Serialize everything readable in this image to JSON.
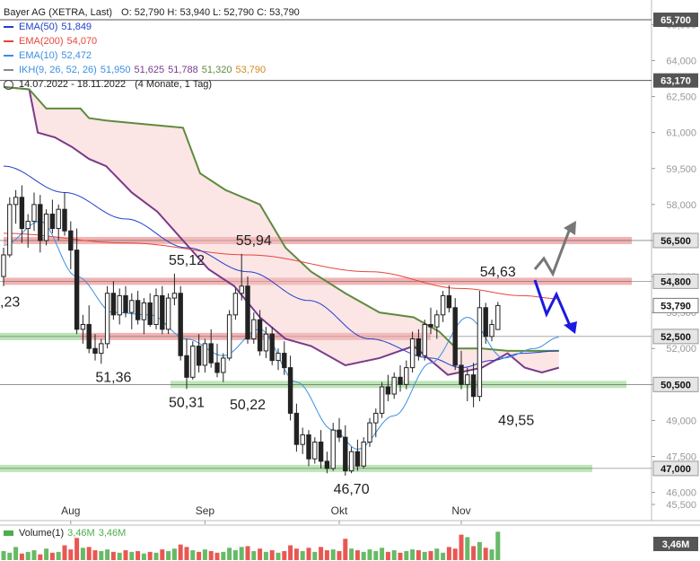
{
  "header": {
    "title": "Bayer AG (XETRA, Last)",
    "ohlc": "O: 52,790  H: 53,940  L: 52,790  C: 53,790",
    "ema50": {
      "label": "EMA(50)",
      "value": "51,849",
      "color": "#1f3fcc"
    },
    "ema200": {
      "label": "EMA(200)",
      "value": "54,070",
      "color": "#e8453c"
    },
    "ema10": {
      "label": "EMA(10)",
      "value": "52,472",
      "color": "#3a8fe0"
    },
    "ikh": {
      "label": "IKH(9, 26, 52, 26)",
      "v1": "51,950",
      "v2": "51,625",
      "v3": "51,788",
      "v4": "51,320",
      "v5": "53,790"
    },
    "period": "14.07.2022 - 18.11.2022",
    "period_note": "(4 Monate, 1 Tag)"
  },
  "volume_legend": {
    "label": "Volume(1)",
    "v1": "3,46M",
    "v2": "3,46M"
  },
  "chart_data": {
    "type": "candlestick",
    "y_axis": {
      "min": 45.2,
      "max": 66.0,
      "ticks": [
        "65,500",
        "64,000",
        "62,500",
        "61,000",
        "59,500",
        "58,000",
        "56,500",
        "55,000",
        "53,500",
        "52,000",
        "50,500",
        "49,000",
        "47,500",
        "46,000",
        "45,500"
      ]
    },
    "x_axis": {
      "labels": [
        "Aug",
        "Sep",
        "Okt",
        "Nov"
      ],
      "label_index": [
        11,
        33,
        55,
        75
      ]
    },
    "price_badges": [
      {
        "value": "65,700",
        "y": 65.7,
        "style": "dark"
      },
      {
        "value": "63,170",
        "y": 63.17,
        "style": "dark"
      },
      {
        "value": "56,500",
        "y": 56.5,
        "style": "zone"
      },
      {
        "value": "54,800",
        "y": 54.8,
        "style": "zone"
      },
      {
        "value": "53,790",
        "y": 53.79,
        "style": "last"
      },
      {
        "value": "52,500",
        "y": 52.5,
        "style": "zone"
      },
      {
        "value": "50,500",
        "y": 50.5,
        "style": "zone"
      },
      {
        "value": "47,000",
        "y": 47.0,
        "style": "zone"
      }
    ],
    "resistance_zones": [
      {
        "y1": 56.35,
        "y2": 56.65,
        "color": "red"
      },
      {
        "y1": 54.65,
        "y2": 54.95,
        "color": "red"
      },
      {
        "y1": 52.35,
        "y2": 52.65,
        "color": "mixed"
      },
      {
        "y1": 50.35,
        "y2": 50.65,
        "color": "green"
      },
      {
        "y1": 46.85,
        "y2": 47.15,
        "color": "green"
      }
    ],
    "annotations": [
      {
        "text": "55,94",
        "i": 41,
        "y": 55.94,
        "pos": "above"
      },
      {
        "text": "55,12",
        "i": 30,
        "y": 55.12,
        "pos": "above"
      },
      {
        "text": "54,63",
        "i": 81,
        "y": 54.63,
        "pos": "above"
      },
      {
        "text": "51,36",
        "i": 18,
        "y": 51.36,
        "pos": "below"
      },
      {
        "text": "50,31",
        "i": 30,
        "y": 50.31,
        "pos": "below"
      },
      {
        "text": "50,22",
        "i": 40,
        "y": 50.22,
        "pos": "below"
      },
      {
        "text": "49,55",
        "i": 84,
        "y": 49.55,
        "pos": "below"
      },
      {
        "text": "46,70",
        "i": 57,
        "y": 46.7,
        "pos": "below"
      },
      {
        "text": ",23",
        "i": 0,
        "y": 53.9,
        "pos": "edge"
      }
    ],
    "candles": [
      [
        55.0,
        56.2,
        54.6,
        55.9
      ],
      [
        55.9,
        58.3,
        55.8,
        58.0
      ],
      [
        58.0,
        58.6,
        57.2,
        58.3
      ],
      [
        58.3,
        58.8,
        56.4,
        57.0
      ],
      [
        57.0,
        57.6,
        56.2,
        57.3
      ],
      [
        57.3,
        58.5,
        56.9,
        58.0
      ],
      [
        58.0,
        58.4,
        56.0,
        56.5
      ],
      [
        56.5,
        57.8,
        56.3,
        57.6
      ],
      [
        57.6,
        58.2,
        56.8,
        57.0
      ],
      [
        57.0,
        58.0,
        56.5,
        57.8
      ],
      [
        57.8,
        58.5,
        56.7,
        56.9
      ],
      [
        56.9,
        57.3,
        55.3,
        56.1
      ],
      [
        56.1,
        57.0,
        52.6,
        52.8
      ],
      [
        52.8,
        53.4,
        52.2,
        53.0
      ],
      [
        53.0,
        53.8,
        51.8,
        52.0
      ],
      [
        52.0,
        52.6,
        51.5,
        51.8
      ],
      [
        51.8,
        52.4,
        51.36,
        52.2
      ],
      [
        52.2,
        54.6,
        52.0,
        54.3
      ],
      [
        54.3,
        54.8,
        53.2,
        53.4
      ],
      [
        53.4,
        54.5,
        53.0,
        54.2
      ],
      [
        54.2,
        54.6,
        53.3,
        53.5
      ],
      [
        53.5,
        54.3,
        52.8,
        54.0
      ],
      [
        54.0,
        54.4,
        53.0,
        53.2
      ],
      [
        53.2,
        54.1,
        52.6,
        53.9
      ],
      [
        53.9,
        54.3,
        52.9,
        53.0
      ],
      [
        53.0,
        54.5,
        52.8,
        54.2
      ],
      [
        54.2,
        54.6,
        52.6,
        52.8
      ],
      [
        52.8,
        54.3,
        52.6,
        54.1
      ],
      [
        54.1,
        55.12,
        53.8,
        54.3
      ],
      [
        54.3,
        54.6,
        51.5,
        51.7
      ],
      [
        51.7,
        52.4,
        50.31,
        50.8
      ],
      [
        50.8,
        52.3,
        50.7,
        52.1
      ],
      [
        52.1,
        52.6,
        51.0,
        51.3
      ],
      [
        51.3,
        52.4,
        51.0,
        52.2
      ],
      [
        52.2,
        52.8,
        51.2,
        51.4
      ],
      [
        51.4,
        52.2,
        50.8,
        51.0
      ],
      [
        51.0,
        51.8,
        50.6,
        51.6
      ],
      [
        51.6,
        53.6,
        51.5,
        53.4
      ],
      [
        53.4,
        54.5,
        53.2,
        54.3
      ],
      [
        54.3,
        55.94,
        54.0,
        54.6
      ],
      [
        54.6,
        55.0,
        52.2,
        52.4
      ],
      [
        52.4,
        53.5,
        52.2,
        53.2
      ],
      [
        53.2,
        53.6,
        51.7,
        51.9
      ],
      [
        51.9,
        52.9,
        51.6,
        52.6
      ],
      [
        52.6,
        52.9,
        51.3,
        51.5
      ],
      [
        51.5,
        52.0,
        51.1,
        51.8
      ],
      [
        51.8,
        52.3,
        50.9,
        51.2
      ],
      [
        51.2,
        51.7,
        49.0,
        49.3
      ],
      [
        49.3,
        49.7,
        47.7,
        48.0
      ],
      [
        48.0,
        48.7,
        47.6,
        48.4
      ],
      [
        48.4,
        48.6,
        47.1,
        47.4
      ],
      [
        47.4,
        48.3,
        47.2,
        48.1
      ],
      [
        48.1,
        48.6,
        47.0,
        47.3
      ],
      [
        47.3,
        47.7,
        46.8,
        47.0
      ],
      [
        47.0,
        48.9,
        46.9,
        48.6
      ],
      [
        48.6,
        49.1,
        48.1,
        48.3
      ],
      [
        48.3,
        48.8,
        46.7,
        46.9
      ],
      [
        46.9,
        47.9,
        46.8,
        47.7
      ],
      [
        47.7,
        48.2,
        46.9,
        47.1
      ],
      [
        47.1,
        48.3,
        47.0,
        48.1
      ],
      [
        48.1,
        49.1,
        47.9,
        48.9
      ],
      [
        48.9,
        49.5,
        48.3,
        49.3
      ],
      [
        49.3,
        50.6,
        49.1,
        50.4
      ],
      [
        50.4,
        50.9,
        49.8,
        50.1
      ],
      [
        50.1,
        51.0,
        49.9,
        50.8
      ],
      [
        50.8,
        51.3,
        50.2,
        50.5
      ],
      [
        50.5,
        51.5,
        50.3,
        51.2
      ],
      [
        51.2,
        52.7,
        51.0,
        52.4
      ],
      [
        52.4,
        52.8,
        51.5,
        51.7
      ],
      [
        51.7,
        53.2,
        51.5,
        53.0
      ],
      [
        53.0,
        53.7,
        52.6,
        52.9
      ],
      [
        52.9,
        53.6,
        52.4,
        53.4
      ],
      [
        53.4,
        54.4,
        53.1,
        54.2
      ],
      [
        54.2,
        54.63,
        53.5,
        53.7
      ],
      [
        53.7,
        54.1,
        51.1,
        51.3
      ],
      [
        51.3,
        51.9,
        50.3,
        50.5
      ],
      [
        50.5,
        51.2,
        49.8,
        50.9
      ],
      [
        50.9,
        51.4,
        49.55,
        50.0
      ],
      [
        50.0,
        54.4,
        49.8,
        53.7
      ],
      [
        53.7,
        53.9,
        52.2,
        52.5
      ],
      [
        52.5,
        53.2,
        52.3,
        53.0
      ],
      [
        52.79,
        53.94,
        52.79,
        53.79
      ]
    ],
    "ema50_anchors": [
      [
        0,
        59.6
      ],
      [
        10,
        58.5
      ],
      [
        20,
        57.4
      ],
      [
        30,
        56.2
      ],
      [
        40,
        55.2
      ],
      [
        50,
        54.0
      ],
      [
        60,
        52.4
      ],
      [
        70,
        51.6
      ],
      [
        75,
        51.2
      ],
      [
        80,
        51.5
      ],
      [
        85,
        51.8
      ],
      [
        91,
        51.9
      ]
    ],
    "ema200_anchors": [
      [
        0,
        56.8
      ],
      [
        20,
        56.4
      ],
      [
        40,
        55.9
      ],
      [
        60,
        55.2
      ],
      [
        75,
        54.5
      ],
      [
        85,
        54.2
      ],
      [
        91,
        54.07
      ]
    ],
    "ema10_anchors": [
      [
        0,
        56.3
      ],
      [
        6,
        57.3
      ],
      [
        12,
        55.0
      ],
      [
        18,
        53.5
      ],
      [
        24,
        53.4
      ],
      [
        30,
        52.4
      ],
      [
        36,
        51.7
      ],
      [
        42,
        52.8
      ],
      [
        48,
        50.6
      ],
      [
        54,
        48.6
      ],
      [
        58,
        47.8
      ],
      [
        64,
        49.2
      ],
      [
        70,
        51.4
      ],
      [
        76,
        53.3
      ],
      [
        82,
        51.6
      ],
      [
        87,
        52.0
      ],
      [
        91,
        52.47
      ]
    ],
    "span_a": [
      [
        0,
        62.9
      ],
      [
        6,
        62.8
      ],
      [
        8,
        61.0
      ],
      [
        12,
        60.8
      ],
      [
        16,
        60.4
      ],
      [
        20,
        59.9
      ],
      [
        24,
        59.6
      ],
      [
        30,
        58.5
      ],
      [
        36,
        57.7
      ],
      [
        42,
        56.5
      ],
      [
        48,
        55.3
      ],
      [
        54,
        54.6
      ],
      [
        60,
        53.3
      ],
      [
        66,
        52.4
      ],
      [
        72,
        52.1
      ],
      [
        80,
        51.3
      ],
      [
        88,
        51.6
      ],
      [
        96,
        52.1
      ],
      [
        104,
        50.9
      ],
      [
        112,
        51.2
      ],
      [
        118,
        51.8
      ],
      [
        122,
        51.2
      ],
      [
        126,
        51.0
      ],
      [
        130,
        51.2
      ]
    ],
    "span_b": [
      [
        0,
        62.9
      ],
      [
        6,
        62.8
      ],
      [
        10,
        62.0
      ],
      [
        14,
        62.0
      ],
      [
        18,
        62.0
      ],
      [
        20,
        61.6
      ],
      [
        24,
        61.5
      ],
      [
        30,
        61.4
      ],
      [
        42,
        61.2
      ],
      [
        46,
        59.3
      ],
      [
        52,
        58.6
      ],
      [
        60,
        58.0
      ],
      [
        66,
        56.2
      ],
      [
        72,
        55.2
      ],
      [
        80,
        54.3
      ],
      [
        88,
        53.5
      ],
      [
        96,
        53.3
      ],
      [
        102,
        52.7
      ],
      [
        106,
        52.0
      ],
      [
        112,
        52.0
      ],
      [
        118,
        51.9
      ],
      [
        126,
        51.9
      ],
      [
        130,
        51.9
      ]
    ],
    "volumes": [
      1.1,
      0.9,
      1.6,
      0.8,
      1.0,
      1.2,
      0.7,
      1.4,
      0.9,
      1.0,
      1.8,
      1.3,
      2.7,
      1.5,
      1.6,
      1.2,
      1.1,
      1.3,
      1.0,
      0.9,
      1.2,
      1.0,
      1.1,
      0.8,
      1.0,
      0.9,
      1.3,
      1.1,
      1.4,
      1.9,
      1.6,
      1.2,
      1.0,
      1.3,
      1.1,
      0.9,
      1.0,
      1.5,
      1.2,
      1.6,
      1.7,
      1.1,
      1.4,
      1.0,
      1.2,
      0.9,
      1.1,
      1.8,
      1.4,
      1.1,
      1.5,
      1.0,
      1.6,
      1.2,
      1.3,
      1.1,
      2.6,
      1.4,
      1.2,
      1.0,
      1.3,
      1.1,
      1.5,
      1.0,
      1.2,
      0.9,
      1.1,
      1.3,
      1.2,
      1.0,
      1.1,
      1.4,
      0.9,
      1.6,
      1.4,
      3.1,
      2.8,
      1.7,
      2.2,
      1.5,
      1.3,
      3.46
    ]
  },
  "colors": {
    "bull": "#4cae4c",
    "bear": "#e53935",
    "tenkan": "#7a3a8a",
    "kijun": "#5e8a3e",
    "cloud": "#f6c5c5",
    "zone_red": "#ee9a9a",
    "zone_green": "#a8dca0",
    "arrow_up": "#777777",
    "arrow_down": "#1a1ae0"
  }
}
